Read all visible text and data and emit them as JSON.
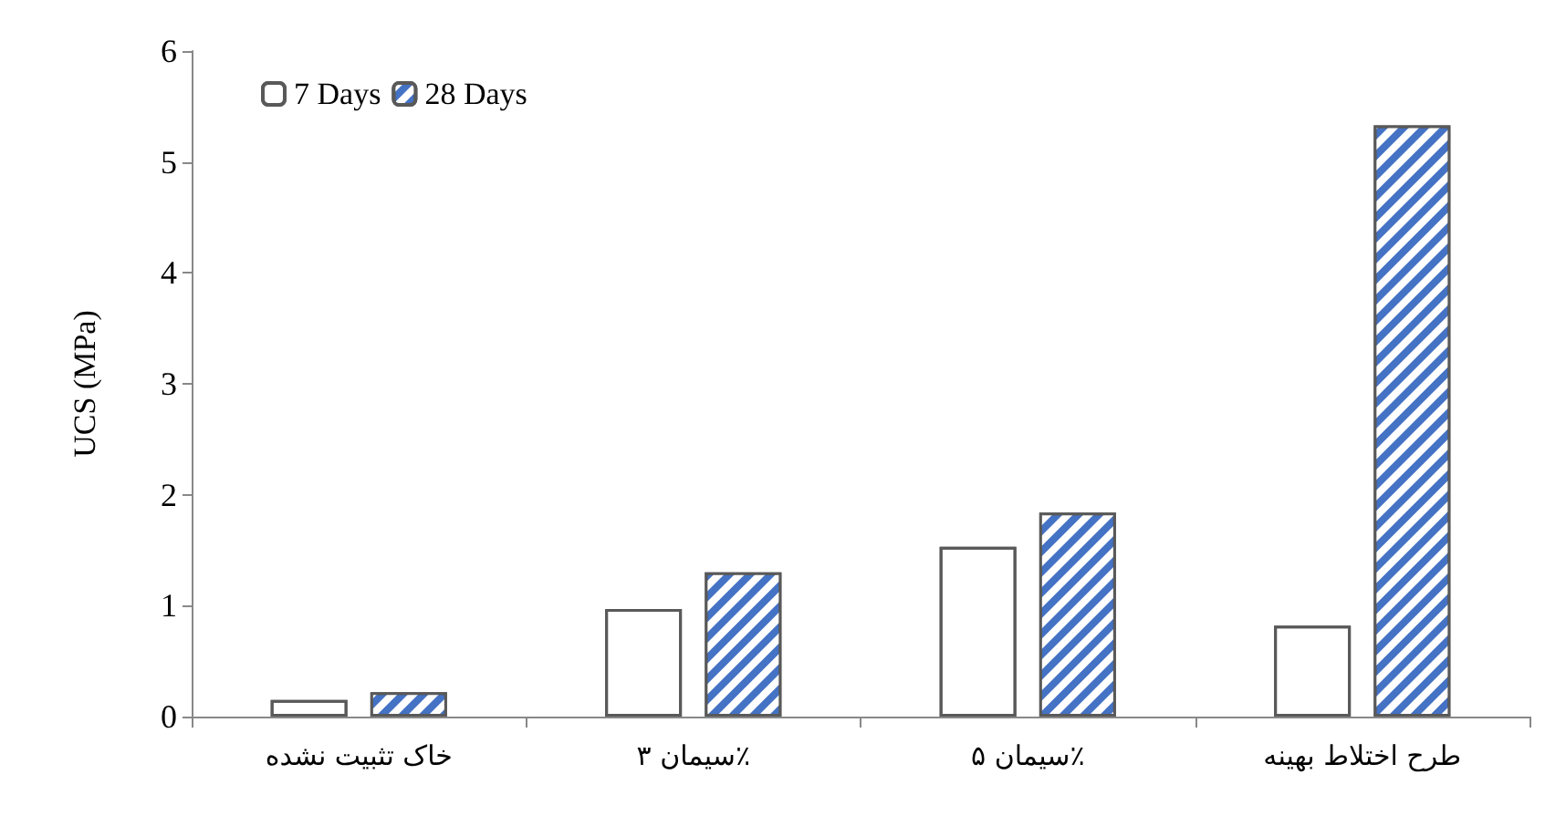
{
  "chart_data": {
    "type": "bar",
    "ylabel": "UCS (MPa)",
    "categories": [
      "خاک تثبیت نشده",
      "سیمان ۳٪",
      "سیمان ۵٪",
      "طرح اختلاط بهینه"
    ],
    "series": [
      {
        "name": "7 Days",
        "color": "#ffffff",
        "values": [
          0.15,
          0.97,
          1.53,
          0.82
        ]
      },
      {
        "name": "28 Days",
        "color": "#4472c4",
        "values": [
          0.22,
          1.3,
          1.84,
          5.33
        ]
      }
    ],
    "ylim": [
      0,
      6
    ],
    "yticks": [
      0,
      1,
      2,
      3,
      4,
      5,
      6
    ],
    "grid": false,
    "legend": "top left"
  }
}
